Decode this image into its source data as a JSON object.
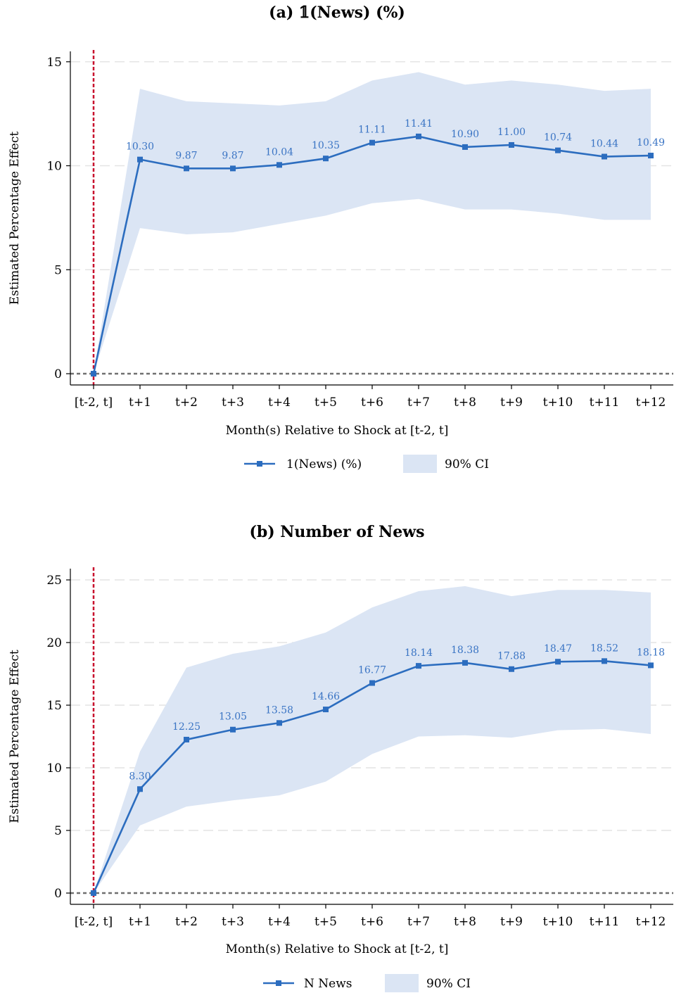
{
  "chart_data": [
    {
      "type": "line",
      "title": "(a) 𝟙(News) (%)",
      "xlabel": "Month(s) Relative to Shock at [t-2, t]",
      "ylabel": "Estimated Percentage Effect",
      "categories": [
        "[t-2, t]",
        "t+1",
        "t+2",
        "t+3",
        "t+4",
        "t+5",
        "t+6",
        "t+7",
        "t+8",
        "t+9",
        "t+10",
        "t+11",
        "t+12"
      ],
      "ylim": [
        0,
        15.5
      ],
      "yticks": [
        0,
        5,
        10,
        15
      ],
      "series": [
        {
          "name": "1(News) (%)",
          "values": [
            0,
            10.3,
            9.87,
            9.87,
            10.04,
            10.35,
            11.11,
            11.41,
            10.9,
            11.0,
            10.74,
            10.44,
            10.49
          ],
          "labels": [
            "",
            "10.30",
            "9.87",
            "9.87",
            "10.04",
            "10.35",
            "11.11",
            "11.41",
            "10.90",
            "11.00",
            "10.74",
            "10.44",
            "10.49"
          ],
          "ci_lower": [
            0,
            7.0,
            6.7,
            6.8,
            7.2,
            7.6,
            8.2,
            8.4,
            7.9,
            7.9,
            7.7,
            7.4,
            7.4
          ],
          "ci_upper": [
            0,
            13.7,
            13.1,
            13.0,
            12.9,
            13.1,
            14.1,
            14.5,
            13.9,
            14.1,
            13.9,
            13.6,
            13.7
          ]
        }
      ],
      "legend": {
        "series_label": "1(News) (%)",
        "ci_label": "90% CI",
        "position": "bottom"
      },
      "grid": true,
      "reference_lines": {
        "vertical_at": "[t-2, t]",
        "horizontal_at": 0
      }
    },
    {
      "type": "line",
      "title": "(b) Number of News",
      "xlabel": "Month(s) Relative to Shock at [t-2, t]",
      "ylabel": "Estimated Percentage Effect",
      "categories": [
        "[t-2, t]",
        "t+1",
        "t+2",
        "t+3",
        "t+4",
        "t+5",
        "t+6",
        "t+7",
        "t+8",
        "t+9",
        "t+10",
        "t+11",
        "t+12"
      ],
      "ylim": [
        0,
        25.9
      ],
      "yticks": [
        0,
        5,
        10,
        15,
        20,
        25
      ],
      "series": [
        {
          "name": "N News",
          "values": [
            0,
            8.3,
            12.25,
            13.05,
            13.58,
            14.66,
            16.77,
            18.14,
            18.38,
            17.88,
            18.47,
            18.52,
            18.18
          ],
          "labels": [
            "",
            "8.30",
            "12.25",
            "13.05",
            "13.58",
            "14.66",
            "16.77",
            "18.14",
            "18.38",
            "17.88",
            "18.47",
            "18.52",
            "18.18"
          ],
          "ci_lower": [
            0,
            5.4,
            6.9,
            7.4,
            7.8,
            8.9,
            11.1,
            12.5,
            12.6,
            12.4,
            13.0,
            13.1,
            12.7
          ],
          "ci_upper": [
            0,
            11.3,
            18.0,
            19.1,
            19.7,
            20.8,
            22.8,
            24.1,
            24.5,
            23.7,
            24.2,
            24.2,
            24.0
          ]
        }
      ],
      "legend": {
        "series_label": "N News",
        "ci_label": "90% CI",
        "position": "bottom"
      },
      "grid": true,
      "reference_lines": {
        "vertical_at": "[t-2, t]",
        "horizontal_at": 0
      }
    }
  ],
  "colors": {
    "line": "#2c6dbf",
    "ci_fill": "#dbe5f4",
    "label": "#3a74c4",
    "vline": "#c8102e",
    "hline": "#707070",
    "grid": "#e4e4e4"
  }
}
